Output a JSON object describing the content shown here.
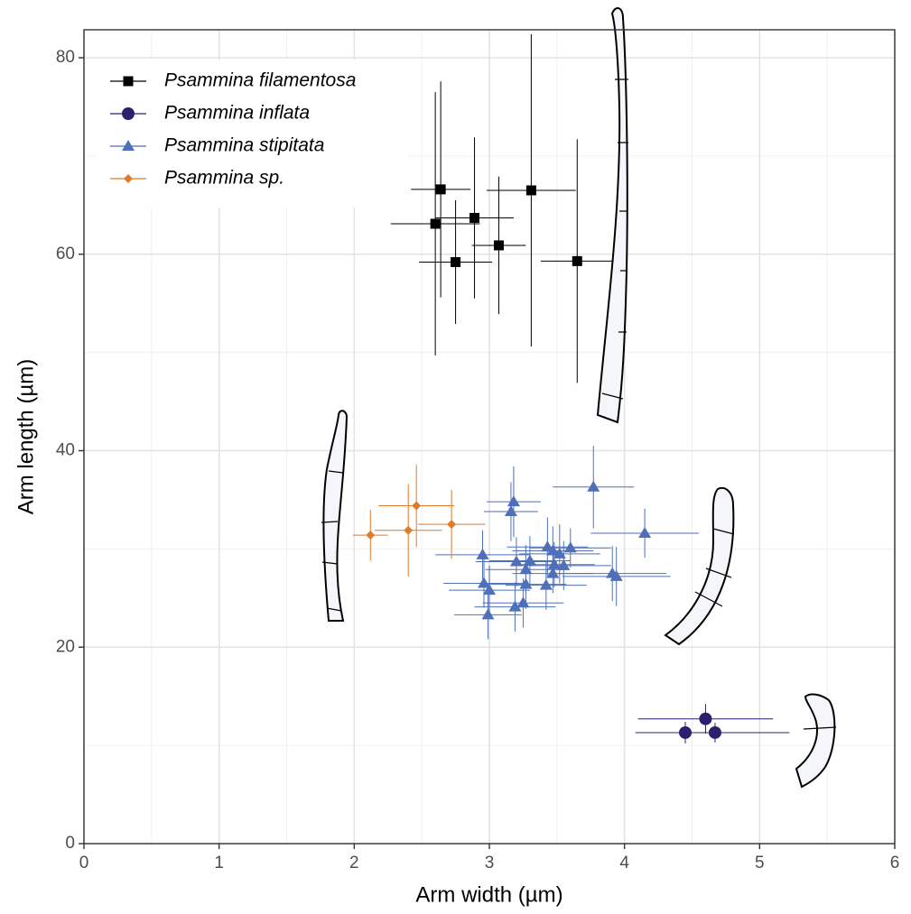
{
  "chart_data": {
    "type": "scatter",
    "xlabel": "Arm width (µm)",
    "ylabel": "Arm length (µm)",
    "xlim": [
      0,
      6
    ],
    "ylim": [
      0,
      80
    ],
    "xticks": [
      0,
      1,
      2,
      3,
      4,
      5,
      6
    ],
    "yticks": [
      0,
      20,
      40,
      60,
      80
    ],
    "grid": true,
    "legend": "top-left",
    "series": [
      {
        "name": "Psammina filamentosa",
        "color": "#000000",
        "marker": "square",
        "x": [
          2.64,
          2.6,
          2.89,
          2.75,
          3.07,
          3.31,
          3.65
        ],
        "y": [
          66.6,
          63.1,
          63.7,
          59.2,
          60.9,
          66.5,
          59.3
        ],
        "xerr": [
          0.22,
          0.33,
          0.29,
          0.27,
          0.2,
          0.33,
          0.27
        ],
        "yerr": [
          11,
          13.4,
          8.2,
          6.3,
          7,
          15.9,
          12.4
        ]
      },
      {
        "name": "Psammina inflata",
        "color": "#2e1f6e",
        "marker": "circle",
        "x": [
          4.6,
          4.45,
          4.67
        ],
        "y": [
          12.7,
          11.3,
          11.3
        ],
        "xerr": [
          0.5,
          0.37,
          0.55
        ],
        "yerr": [
          1.5,
          1.1,
          1.0
        ]
      },
      {
        "name": "Psammina stipitata",
        "color": "#4f6fb8",
        "marker": "triangle",
        "x": [
          3.77,
          3.18,
          3.16,
          4.15,
          3.43,
          3.6,
          3.47,
          3.52,
          2.95,
          3.3,
          3.2,
          3.48,
          3.55,
          3.27,
          3.47,
          3.91,
          3.94,
          2.96,
          3.27,
          3.42,
          3.0,
          3.25,
          3.19,
          2.99
        ],
        "y": [
          36.3,
          34.8,
          33.8,
          31.6,
          30.2,
          30.1,
          29.8,
          29.5,
          29.4,
          28.8,
          28.7,
          28.4,
          28.3,
          27.9,
          27.5,
          27.5,
          27.2,
          26.5,
          26.4,
          26.3,
          25.8,
          24.5,
          24.1,
          23.3
        ],
        "xerr": [
          0.3,
          0.2,
          0.2,
          0.4,
          0.3,
          0.3,
          0.3,
          0.3,
          0.35,
          0.3,
          0.3,
          0.3,
          0.35,
          0.3,
          0.3,
          0.4,
          0.4,
          0.3,
          0.3,
          0.3,
          0.3,
          0.3,
          0.3,
          0.25
        ],
        "yerr": [
          4.2,
          3.6,
          3,
          2.5,
          3,
          2,
          2.5,
          3,
          2.5,
          2.5,
          2.5,
          2.3,
          2.5,
          2.5,
          2,
          2.8,
          3,
          2.5,
          2.5,
          2.5,
          2.5,
          2.5,
          2.5,
          2.5
        ]
      },
      {
        "name": "Psammina sp.",
        "color": "#e07b2a",
        "marker": "diamond",
        "x": [
          2.12,
          2.4,
          2.46,
          2.72
        ],
        "y": [
          31.4,
          31.9,
          34.4,
          32.5
        ],
        "xerr": [
          0.13,
          0.25,
          0.28,
          0.25
        ],
        "yerr": [
          2.6,
          4.7,
          4.2,
          3.5
        ]
      }
    ]
  }
}
